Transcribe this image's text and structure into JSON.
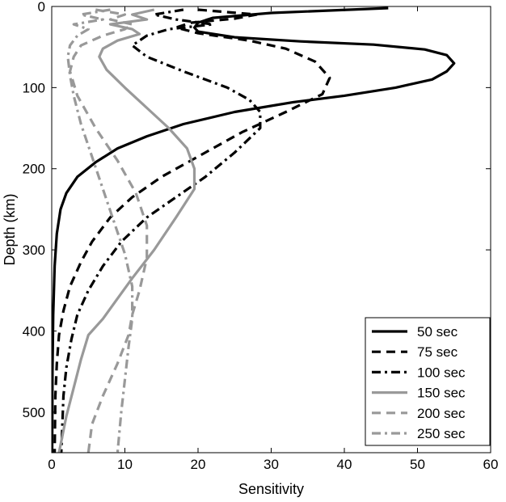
{
  "chart_data": {
    "type": "line",
    "title": "",
    "xlabel": "Sensitivity",
    "ylabel": "Depth (km)",
    "xlim": [
      0,
      60
    ],
    "ylim": [
      0,
      550
    ],
    "y_inverted": true,
    "grid": false,
    "legend_position": "bottom-right",
    "x_ticks": [
      0,
      10,
      20,
      30,
      40,
      50,
      60
    ],
    "y_ticks": [
      0,
      100,
      200,
      300,
      400,
      500
    ],
    "series": [
      {
        "name": "50 sec",
        "color": "#000000",
        "dash": "solid",
        "points": [
          [
            46,
            2
          ],
          [
            30,
            8
          ],
          [
            22,
            14
          ],
          [
            20,
            20
          ],
          [
            19.5,
            26
          ],
          [
            20,
            31
          ],
          [
            25,
            38
          ],
          [
            34,
            43
          ],
          [
            44,
            47
          ],
          [
            51,
            53
          ],
          [
            54,
            60
          ],
          [
            55,
            70
          ],
          [
            54,
            80
          ],
          [
            52,
            90
          ],
          [
            47,
            100
          ],
          [
            40,
            110
          ],
          [
            33,
            118
          ],
          [
            25,
            130
          ],
          [
            18,
            145
          ],
          [
            13,
            160
          ],
          [
            9,
            175
          ],
          [
            6,
            192
          ],
          [
            3.5,
            210
          ],
          [
            2,
            230
          ],
          [
            1.2,
            250
          ],
          [
            0.7,
            280
          ],
          [
            0.4,
            320
          ],
          [
            0.2,
            380
          ],
          [
            0.1,
            450
          ],
          [
            0.05,
            550
          ]
        ]
      },
      {
        "name": "75 sec",
        "color": "#000000",
        "dash": "dashed",
        "points": [
          [
            20,
            4
          ],
          [
            28,
            10
          ],
          [
            25,
            15
          ],
          [
            19,
            20
          ],
          [
            17,
            26
          ],
          [
            20,
            33
          ],
          [
            27,
            42
          ],
          [
            32,
            52
          ],
          [
            36,
            68
          ],
          [
            38,
            88
          ],
          [
            37,
            108
          ],
          [
            32,
            130
          ],
          [
            26,
            155
          ],
          [
            20,
            185
          ],
          [
            15,
            210
          ],
          [
            11,
            235
          ],
          [
            8,
            260
          ],
          [
            5.5,
            290
          ],
          [
            4,
            315
          ],
          [
            2.5,
            345
          ],
          [
            1.6,
            375
          ],
          [
            1,
            405
          ],
          [
            0.7,
            440
          ],
          [
            0.5,
            480
          ],
          [
            0.4,
            550
          ]
        ]
      },
      {
        "name": "100 sec",
        "color": "#000000",
        "dash": "dashdot",
        "points": [
          [
            18,
            4
          ],
          [
            14,
            10
          ],
          [
            17,
            16
          ],
          [
            22,
            22
          ],
          [
            16,
            28
          ],
          [
            13,
            36
          ],
          [
            11,
            48
          ],
          [
            13,
            62
          ],
          [
            18,
            80
          ],
          [
            24,
            100
          ],
          [
            27,
            115
          ],
          [
            28.5,
            130
          ],
          [
            28.5,
            150
          ],
          [
            25,
            180
          ],
          [
            21,
            210
          ],
          [
            17,
            235
          ],
          [
            13,
            260
          ],
          [
            9.5,
            290
          ],
          [
            7,
            320
          ],
          [
            5,
            350
          ],
          [
            3.5,
            380
          ],
          [
            2.7,
            410
          ],
          [
            2,
            445
          ],
          [
            1.6,
            480
          ],
          [
            1.3,
            550
          ]
        ]
      },
      {
        "name": "150 sec",
        "color": "#999999",
        "dash": "solid",
        "points": [
          [
            14,
            4
          ],
          [
            11,
            10
          ],
          [
            13,
            16
          ],
          [
            8,
            22
          ],
          [
            11,
            28
          ],
          [
            12,
            34
          ],
          [
            9,
            42
          ],
          [
            7,
            52
          ],
          [
            6.5,
            62
          ],
          [
            7.5,
            78
          ],
          [
            10,
            100
          ],
          [
            13,
            125
          ],
          [
            16,
            150
          ],
          [
            18.5,
            175
          ],
          [
            19.5,
            200
          ],
          [
            19.5,
            225
          ],
          [
            17,
            260
          ],
          [
            14,
            300
          ],
          [
            11,
            335
          ],
          [
            9,
            360
          ],
          [
            7,
            385
          ],
          [
            5,
            405
          ],
          [
            4,
            435
          ],
          [
            3,
            470
          ],
          [
            2,
            505
          ],
          [
            1,
            550
          ]
        ]
      },
      {
        "name": "200 sec",
        "color": "#999999",
        "dash": "dashed",
        "points": [
          [
            6,
            4
          ],
          [
            10,
            10
          ],
          [
            8,
            16
          ],
          [
            11,
            22
          ],
          [
            10,
            28
          ],
          [
            7,
            36
          ],
          [
            4,
            48
          ],
          [
            3,
            62
          ],
          [
            2.5,
            80
          ],
          [
            3.5,
            110
          ],
          [
            6,
            150
          ],
          [
            9,
            190
          ],
          [
            11.5,
            230
          ],
          [
            13,
            270
          ],
          [
            13,
            310
          ],
          [
            12,
            350
          ],
          [
            11,
            380
          ],
          [
            10.5,
            405
          ],
          [
            9,
            440
          ],
          [
            7,
            480
          ],
          [
            5.5,
            515
          ],
          [
            5,
            550
          ]
        ]
      },
      {
        "name": "250 sec",
        "color": "#999999",
        "dash": "dashdot",
        "points": [
          [
            8,
            4
          ],
          [
            4,
            10
          ],
          [
            7,
            16
          ],
          [
            3,
            22
          ],
          [
            5,
            28
          ],
          [
            3.5,
            36
          ],
          [
            2.5,
            48
          ],
          [
            2.2,
            62
          ],
          [
            2.5,
            85
          ],
          [
            3,
            110
          ],
          [
            4,
            145
          ],
          [
            5.5,
            185
          ],
          [
            7,
            225
          ],
          [
            8.5,
            265
          ],
          [
            10,
            305
          ],
          [
            11,
            345
          ],
          [
            11,
            385
          ],
          [
            10.5,
            420
          ],
          [
            10,
            460
          ],
          [
            9.5,
            500
          ],
          [
            9,
            550
          ]
        ]
      }
    ]
  }
}
